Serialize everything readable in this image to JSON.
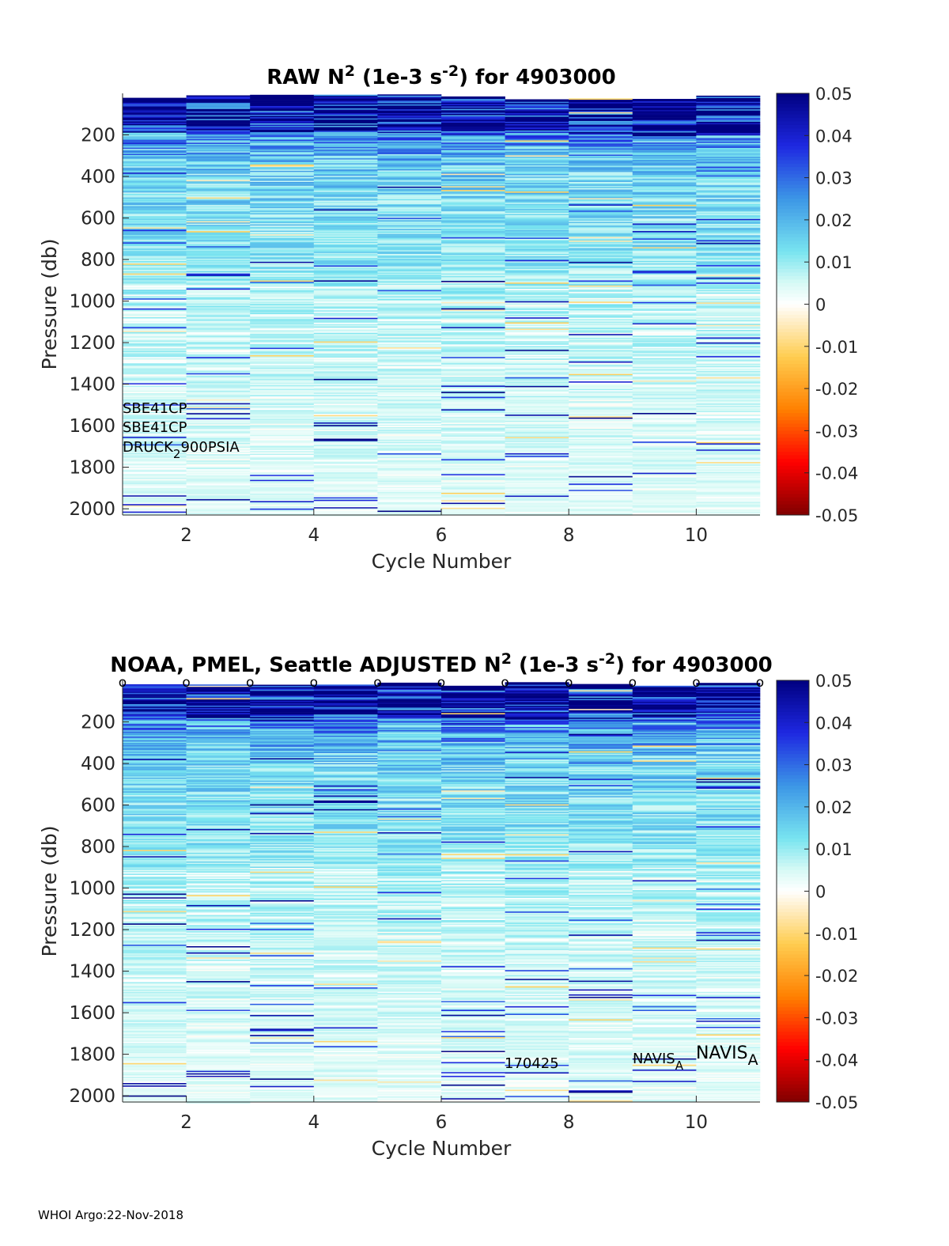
{
  "footer": "WHOI Argo:22-Nov-2018",
  "colorbar": {
    "ticks": [
      "0.05",
      "0.04",
      "0.03",
      "0.02",
      "0.01",
      "0",
      "-0.01",
      "-0.02",
      "-0.03",
      "-0.04",
      "-0.05"
    ],
    "range": [
      -0.05,
      0.05
    ],
    "colormap": "jet-like with white at zero"
  },
  "chart_data": [
    {
      "type": "heatmap",
      "title_text": "RAW N",
      "title_sup1": "2",
      "title_mid": " (1e-3 s",
      "title_sup2": "-2",
      "title_end": ") for 4903000",
      "xlabel": "Cycle Number",
      "ylabel": "Pressure (db)",
      "x_ticks": [
        "2",
        "4",
        "6",
        "8",
        "10"
      ],
      "y_ticks": [
        "200",
        "400",
        "600",
        "800",
        "1000",
        "1200",
        "1400",
        "1600",
        "1800",
        "2000"
      ],
      "xlim": [
        1,
        11
      ],
      "ylim": [
        0,
        2030
      ],
      "y_reversed": true,
      "cycles": [
        1,
        2,
        3,
        4,
        5,
        6,
        7,
        8,
        9,
        10
      ],
      "value_profile": [
        {
          "p": 0,
          "v": 0.05
        },
        {
          "p": 150,
          "v": 0.05
        },
        {
          "p": 200,
          "v": 0.025
        },
        {
          "p": 400,
          "v": 0.015
        },
        {
          "p": 700,
          "v": 0.012
        },
        {
          "p": 1000,
          "v": 0.008
        },
        {
          "p": 1400,
          "v": 0.006
        },
        {
          "p": 2000,
          "v": 0.004
        }
      ],
      "annotations": [
        {
          "text": "SBE41CP"
        },
        {
          "text": "SBE41CP"
        },
        {
          "text": "DRUCK",
          "sub": "2",
          "after": "900PSIA"
        }
      ]
    },
    {
      "type": "heatmap",
      "title_text": "NOAA, PMEL, Seattle  ADJUSTED N",
      "title_sup1": "2",
      "title_mid": " (1e-3 s",
      "title_sup2": "-2",
      "title_end": ") for 4903000",
      "xlabel": "Cycle Number",
      "ylabel": "Pressure (db)",
      "x_ticks": [
        "2",
        "4",
        "6",
        "8",
        "10"
      ],
      "y_ticks": [
        "200",
        "400",
        "600",
        "800",
        "1000",
        "1200",
        "1400",
        "1600",
        "1800",
        "2000"
      ],
      "xlim": [
        1,
        11
      ],
      "ylim": [
        0,
        2030
      ],
      "y_reversed": true,
      "cycles": [
        1,
        2,
        3,
        4,
        5,
        6,
        7,
        8,
        9,
        10
      ],
      "top_markers": "o",
      "marker_cycles": [
        1,
        2,
        3,
        4,
        5,
        6,
        7,
        8,
        9,
        10,
        11
      ],
      "value_profile": [
        {
          "p": 0,
          "v": 0.05
        },
        {
          "p": 150,
          "v": 0.05
        },
        {
          "p": 200,
          "v": 0.025
        },
        {
          "p": 400,
          "v": 0.015
        },
        {
          "p": 700,
          "v": 0.012
        },
        {
          "p": 1000,
          "v": 0.008
        },
        {
          "p": 1400,
          "v": 0.006
        },
        {
          "p": 2000,
          "v": 0.004
        }
      ],
      "annotations": [
        {
          "text": "170425"
        },
        {
          "text": "NAVIS",
          "sub": "A"
        },
        {
          "text": "NAVIS",
          "sub": "A"
        }
      ]
    }
  ]
}
